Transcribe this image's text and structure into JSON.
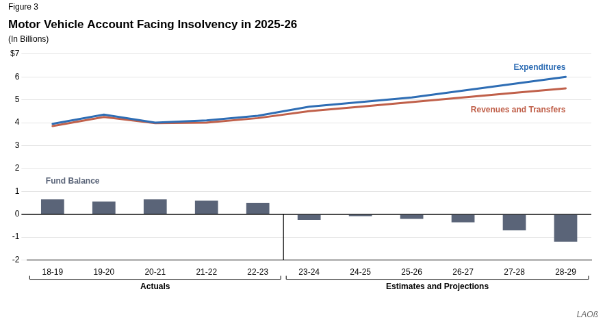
{
  "chart_data": {
    "type": "bar",
    "title": "Motor Vehicle Account Facing Insolvency in 2025-26",
    "subtitle": "(In Billions)",
    "categories": [
      "18-19",
      "19-20",
      "20-21",
      "21-22",
      "22-23",
      "23-24",
      "24-25",
      "25-26",
      "26-27",
      "27-28",
      "28-29"
    ],
    "series": [
      {
        "name": "Fund Balance",
        "type": "bar",
        "color": "#5A6478",
        "values": [
          0.65,
          0.55,
          0.65,
          0.6,
          0.5,
          -0.25,
          -0.08,
          -0.2,
          -0.35,
          -0.7,
          -1.2
        ]
      },
      {
        "name": "Expenditures",
        "type": "line",
        "color": "#2E6DB4",
        "values": [
          3.95,
          4.35,
          4.0,
          4.1,
          4.3,
          4.7,
          4.9,
          5.1,
          5.4,
          5.7,
          6.0
        ]
      },
      {
        "name": "Revenues and Transfers",
        "type": "line",
        "color": "#C0604A",
        "values": [
          3.85,
          4.25,
          3.98,
          4.0,
          4.2,
          4.5,
          4.7,
          4.9,
          5.1,
          5.3,
          5.5
        ]
      }
    ],
    "ylim": [
      -2,
      7
    ],
    "yticks": [
      -2,
      -1,
      0,
      1,
      2,
      3,
      4,
      5,
      6,
      {
        "value": 7,
        "label": "$7"
      }
    ],
    "grid": true,
    "annotations": [
      {
        "text": "Figure 3"
      },
      {
        "text": "Actuals",
        "from": "18-19",
        "to": "22-23"
      },
      {
        "text": "Estimates and Projections",
        "from": "23-24",
        "to": "28-29"
      },
      {
        "text": "LAOß"
      }
    ]
  }
}
